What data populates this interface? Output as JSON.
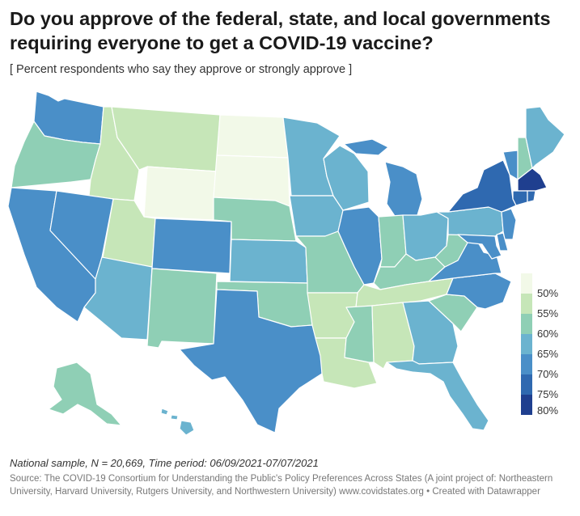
{
  "title": "Do you approve of the federal, state, and local governments requiring everyone to get a COVID-19 vaccine?",
  "subtitle": "[ Percent respondents who say they approve or strongly approve ]",
  "legend": {
    "labels": [
      "50%",
      "55%",
      "60%",
      "65%",
      "70%",
      "75%",
      "80%"
    ],
    "colors": [
      "#f2f9e8",
      "#c6e6b8",
      "#8fcfb5",
      "#6bb3cf",
      "#4a8fc8",
      "#2f69b0",
      "#1f3f8f"
    ]
  },
  "palette": {
    "c1": "#f2f9e8",
    "c2": "#c6e6b8",
    "c3": "#8fcfb5",
    "c4": "#6bb3cf",
    "c5": "#4a8fc8",
    "c6": "#2f69b0",
    "c7": "#1f3f8f"
  },
  "states": {
    "WA": "c5",
    "OR": "c3",
    "CA": "c5",
    "ID": "c2",
    "NV": "c5",
    "MT": "c2",
    "WY": "c1",
    "UT": "c2",
    "AZ": "c4",
    "CO": "c5",
    "NM": "c3",
    "ND": "c1",
    "SD": "c1",
    "NE": "c3",
    "KS": "c4",
    "OK": "c3",
    "TX": "c5",
    "MN": "c4",
    "IA": "c4",
    "MO": "c3",
    "AR": "c2",
    "LA": "c2",
    "WI": "c4",
    "IL": "c5",
    "MI": "c5",
    "IN": "c3",
    "OH": "c4",
    "KY": "c3",
    "TN": "c2",
    "MS": "c3",
    "AL": "c2",
    "GA": "c4",
    "FL": "c4",
    "SC": "c3",
    "NC": "c5",
    "VA": "c5",
    "WV": "c3",
    "PA": "c4",
    "NY": "c6",
    "VT": "c5",
    "NH": "c3",
    "ME": "c4",
    "MA": "c7",
    "CT": "c6",
    "RI": "c6",
    "NJ": "c5",
    "DE": "c5",
    "MD": "c5",
    "AK": "c3",
    "HI": "c4"
  },
  "note": "National sample, N = 20,669, Time period: 06/09/2021-07/07/2021",
  "source": "Source: The COVID-19 Consortium for Understanding the Public's Policy Preferences Across States (A joint project of: Northeastern University, Harvard University, Rutgers University, and Northwestern University) www.covidstates.org • Created with Datawrapper"
}
